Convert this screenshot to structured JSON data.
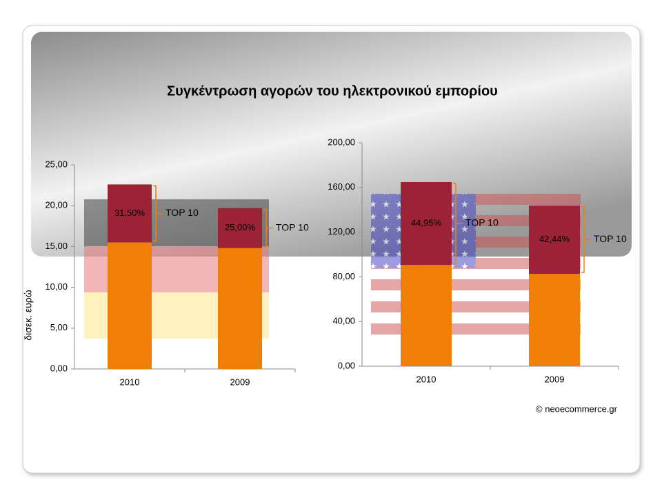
{
  "slide": {
    "title": "Συγκέντρωση αγορών του ηλεκτρονικού εμπορίου",
    "credit": "© neoecommerce.gr"
  },
  "chart_data": [
    {
      "type": "bar",
      "stacked": true,
      "ylabel": "δισεκ. ευρώ",
      "categories": [
        "2010",
        "2009"
      ],
      "series": [
        {
          "color": "#f07f09",
          "values": [
            15.5,
            14.8
          ]
        },
        {
          "color": "#9b2335",
          "values": [
            7.1,
            4.9
          ]
        }
      ],
      "ylim": [
        0,
        25
      ],
      "yticks": [
        {
          "value": 0,
          "label": "0,00"
        },
        {
          "value": 5,
          "label": "5,00"
        },
        {
          "value": 10,
          "label": "10,00"
        },
        {
          "value": 15,
          "label": "15,00"
        },
        {
          "value": 20,
          "label": "20,00"
        },
        {
          "value": 25,
          "label": "25,00"
        }
      ],
      "annotations": [
        {
          "label": "31,50%",
          "tag": "TOP 10"
        },
        {
          "label": "25,00%",
          "tag": "TOP 10"
        }
      ]
    },
    {
      "type": "bar",
      "stacked": true,
      "categories": [
        "2010",
        "2009"
      ],
      "series": [
        {
          "color": "#f07f09",
          "values": [
            90.7,
            82.7
          ]
        },
        {
          "color": "#9b2335",
          "values": [
            74.1,
            61.1
          ]
        }
      ],
      "ylim": [
        0,
        200
      ],
      "yticks": [
        {
          "value": 0,
          "label": "0,00"
        },
        {
          "value": 40,
          "label": "40,00"
        },
        {
          "value": 80,
          "label": "80,00"
        },
        {
          "value": 120,
          "label": "120,00"
        },
        {
          "value": 160,
          "label": "160,00"
        },
        {
          "value": 200,
          "label": "200,00"
        }
      ],
      "annotations": [
        {
          "label": "44,95%",
          "tag": "TOP 10"
        },
        {
          "label": "42,44%",
          "tag": "TOP 10"
        }
      ]
    }
  ]
}
